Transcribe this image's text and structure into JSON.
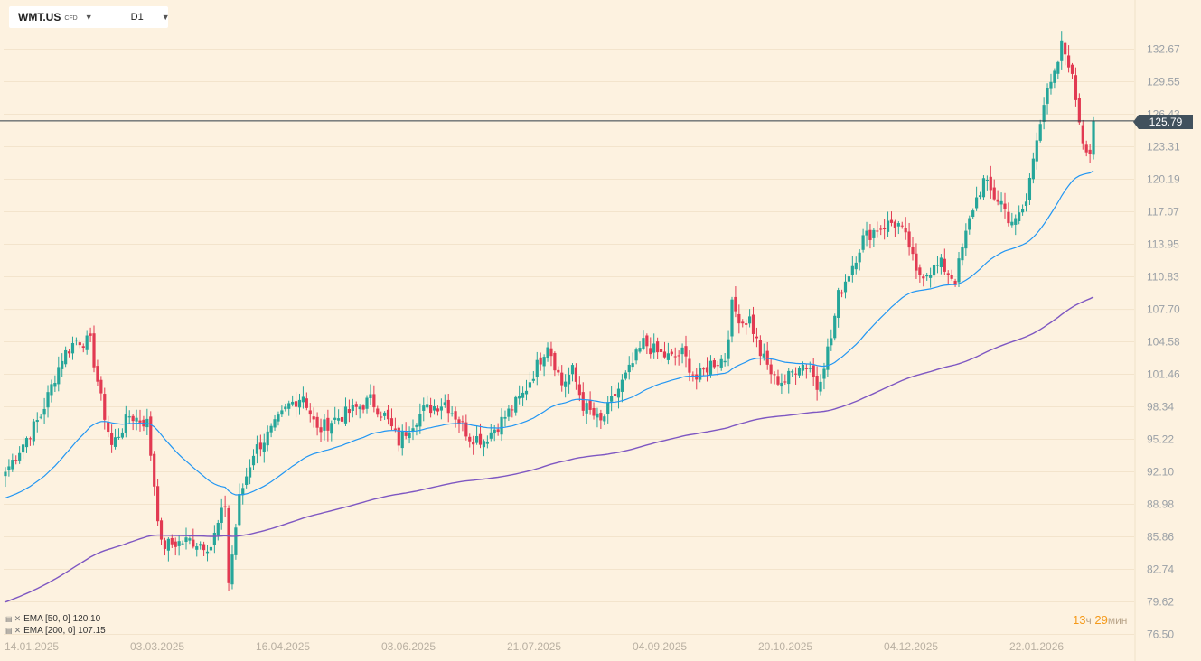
{
  "header": {
    "symbol": "WMT.US",
    "symbol_type": "CFD",
    "timeframe": "D1",
    "symbol_dropdown_icon": "chevron-down-icon",
    "timeframe_dropdown_icon": "chevron-down-icon"
  },
  "last_price_label": "125.79",
  "legend": [
    {
      "label": "EMA [50, 0] 120.10",
      "color": "#2196f3"
    },
    {
      "label": "EMA [200, 0] 107.15",
      "color": "#7e57c2"
    }
  ],
  "timer": {
    "hours": "13",
    "hours_unit": "ч",
    "minutes": "29",
    "minutes_unit": "мин"
  },
  "colors": {
    "background": "#fdf2e0",
    "up": "#26a69a",
    "down": "#e23a52",
    "ema50": "#2196f3",
    "ema200": "#7e57c2",
    "price_line": "#2f3d47"
  },
  "chart_data": {
    "type": "candlestick",
    "symbol": "WMT.US",
    "timeframe": "D1",
    "ylim": [
      76.5,
      134.5
    ],
    "y_ticks": [
      "132.67",
      "129.55",
      "126.43",
      "123.31",
      "120.19",
      "117.07",
      "113.95",
      "110.83",
      "107.70",
      "104.58",
      "101.46",
      "98.34",
      "95.22",
      "92.10",
      "88.98",
      "85.86",
      "82.74",
      "79.62",
      "76.50"
    ],
    "x_ticks": [
      "14.01.2025",
      "03.03.2025",
      "16.04.2025",
      "03.06.2025",
      "21.07.2025",
      "04.09.2025",
      "20.10.2025",
      "04.12.2025",
      "22.01.2026"
    ],
    "last_price": 125.79,
    "close_anchors": [
      [
        0,
        92.1
      ],
      [
        10,
        97.5
      ],
      [
        16,
        103.1
      ],
      [
        20,
        104.8
      ],
      [
        24,
        104.5
      ],
      [
        27,
        99.0
      ],
      [
        30,
        94.6
      ],
      [
        35,
        97.5
      ],
      [
        40,
        96.8
      ],
      [
        44,
        85.0
      ],
      [
        52,
        85.5
      ],
      [
        58,
        85.0
      ],
      [
        62,
        89.0
      ],
      [
        63,
        81.5
      ],
      [
        66,
        89.5
      ],
      [
        70,
        94.0
      ],
      [
        75,
        96.0
      ],
      [
        80,
        98.5
      ],
      [
        84,
        99.5
      ],
      [
        88,
        96.0
      ],
      [
        92,
        97.0
      ],
      [
        98,
        98.0
      ],
      [
        103,
        99.0
      ],
      [
        107,
        97.5
      ],
      [
        111,
        95.0
      ],
      [
        114,
        96.5
      ],
      [
        118,
        98.0
      ],
      [
        124,
        98.8
      ],
      [
        127,
        97.5
      ],
      [
        131,
        95.5
      ],
      [
        135,
        95.2
      ],
      [
        140,
        97.0
      ],
      [
        146,
        99.5
      ],
      [
        151,
        103.0
      ],
      [
        153,
        104.5
      ],
      [
        157,
        100.5
      ],
      [
        160,
        101.8
      ],
      [
        163,
        98.5
      ],
      [
        168,
        96.8
      ],
      [
        172,
        99.5
      ],
      [
        176,
        101.8
      ],
      [
        180,
        104.5
      ],
      [
        184,
        103.5
      ],
      [
        188,
        103.0
      ],
      [
        191,
        103.5
      ],
      [
        195,
        101.0
      ],
      [
        199,
        102.5
      ],
      [
        203,
        103.0
      ],
      [
        205,
        108.0
      ],
      [
        208,
        106.5
      ],
      [
        210,
        106.8
      ],
      [
        213,
        103.5
      ],
      [
        217,
        101.0
      ],
      [
        220,
        100.8
      ],
      [
        224,
        102.5
      ],
      [
        227,
        102.2
      ],
      [
        229,
        100.2
      ],
      [
        233,
        105.0
      ],
      [
        235,
        109.0
      ],
      [
        239,
        112.0
      ],
      [
        242,
        114.5
      ],
      [
        246,
        115.5
      ],
      [
        250,
        116.0
      ],
      [
        252,
        115.8
      ],
      [
        255,
        113.8
      ],
      [
        257,
        111.0
      ],
      [
        261,
        111.5
      ],
      [
        264,
        112.0
      ],
      [
        268,
        110.5
      ],
      [
        270,
        113.5
      ],
      [
        273,
        117.5
      ],
      [
        276,
        120.0
      ],
      [
        279,
        118.5
      ],
      [
        281,
        118.0
      ],
      [
        283,
        116.5
      ],
      [
        285,
        116.0
      ],
      [
        288,
        118.0
      ],
      [
        291,
        124.5
      ],
      [
        293,
        127.5
      ],
      [
        296,
        130.0
      ],
      [
        298,
        133.0
      ],
      [
        300,
        131.5
      ],
      [
        302,
        128.0
      ],
      [
        304,
        124.0
      ],
      [
        306,
        122.8
      ],
      [
        307,
        125.79
      ]
    ],
    "series": [
      {
        "name": "EMA [50, 0]",
        "last_value": 120.1
      },
      {
        "name": "EMA [200, 0]",
        "last_value": 107.15
      }
    ]
  }
}
